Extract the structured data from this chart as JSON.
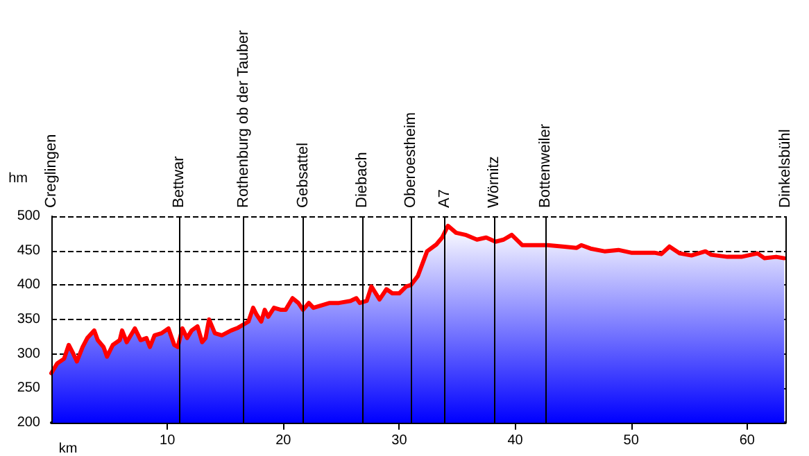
{
  "chart_data": {
    "type": "area",
    "xlabel": "km",
    "ylabel": "hm",
    "xlim": [
      0,
      63.3
    ],
    "xticks": [
      10,
      20,
      30,
      40,
      50,
      60
    ],
    "ylim": [
      200,
      500
    ],
    "yticks": [
      200,
      250,
      300,
      350,
      400,
      450,
      500
    ],
    "grid": "y",
    "marker": "none",
    "line_style": "solid",
    "series": [
      {
        "color": "#ff0000",
        "x": [
          0,
          0.5,
          1.1,
          1.5,
          1.9,
          2.2,
          2.7,
          3.1,
          3.7,
          4.0,
          4.5,
          4.8,
          5.3,
          5.9,
          6.1,
          6.5,
          7.2,
          7.7,
          8.2,
          8.5,
          8.9,
          9.5,
          10.1,
          10.6,
          10.9,
          11.3,
          11.7,
          12.1,
          12.6,
          13.0,
          13.3,
          13.6,
          14.1,
          14.7,
          15.5,
          16.1,
          16.7,
          17.0,
          17.4,
          17.7,
          18.1,
          18.4,
          18.7,
          19.2,
          19.8,
          20.2,
          20.8,
          21.3,
          21.7,
          22.2,
          22.6,
          23.4,
          24.0,
          24.8,
          25.8,
          26.3,
          26.6,
          27.2,
          27.6,
          28.3,
          28.9,
          29.4,
          30.0,
          30.6,
          31.0,
          31.6,
          32.4,
          33.2,
          33.7,
          34.2,
          34.9,
          35.7,
          36.7,
          37.5,
          38.3,
          39.0,
          39.7,
          40.6,
          41.8,
          42.8,
          44.1,
          45.3,
          45.7,
          46.5,
          47.7,
          48.9,
          50.0,
          52.0,
          52.6,
          53.3,
          54.2,
          55.2,
          56.4,
          56.9,
          58.3,
          59.5,
          60.9,
          61.5,
          62.5,
          63.2
        ],
        "values": [
          272,
          286,
          293,
          313,
          300,
          289,
          310,
          323,
          334,
          320,
          310,
          296,
          313,
          320,
          334,
          317,
          337,
          320,
          323,
          310,
          327,
          330,
          337,
          313,
          310,
          337,
          323,
          334,
          340,
          317,
          323,
          350,
          330,
          327,
          334,
          338,
          344,
          347,
          367,
          357,
          347,
          364,
          354,
          367,
          364,
          364,
          381,
          374,
          364,
          374,
          367,
          371,
          374,
          374,
          377,
          381,
          374,
          377,
          398,
          379,
          394,
          388,
          388,
          398,
          400,
          413,
          449,
          459,
          469,
          486,
          476,
          473,
          466,
          469,
          463,
          466,
          473,
          458,
          458,
          458,
          456,
          454,
          458,
          453,
          449,
          451,
          447,
          447,
          445,
          456,
          446,
          443,
          449,
          444,
          441,
          441,
          446,
          439,
          441,
          439
        ]
      }
    ],
    "ref_lines": [
      {
        "axis": "x",
        "value": 0,
        "label": "Creglingen",
        "color": "#000000"
      },
      {
        "axis": "x",
        "value": 11.0,
        "label": "Bettwar",
        "color": "#000000"
      },
      {
        "axis": "x",
        "value": 16.6,
        "label": "Rothenburg ob der Tauber",
        "color": "#000000"
      },
      {
        "axis": "x",
        "value": 21.7,
        "label": "Gebsattel",
        "color": "#000000"
      },
      {
        "axis": "x",
        "value": 26.8,
        "label": "Diebach",
        "color": "#000000"
      },
      {
        "axis": "x",
        "value": 31.0,
        "label": "Oberoestheim",
        "color": "#000000"
      },
      {
        "axis": "x",
        "value": 33.9,
        "label": "A7",
        "color": "#000000"
      },
      {
        "axis": "x",
        "value": 38.2,
        "label": "Wörnitz",
        "color": "#000000"
      },
      {
        "axis": "x",
        "value": 42.6,
        "label": "Bottenweiler",
        "color": "#000000"
      },
      {
        "axis": "x",
        "value": 63.3,
        "label": "Dinkelsbühl",
        "color": "#000000"
      }
    ]
  }
}
